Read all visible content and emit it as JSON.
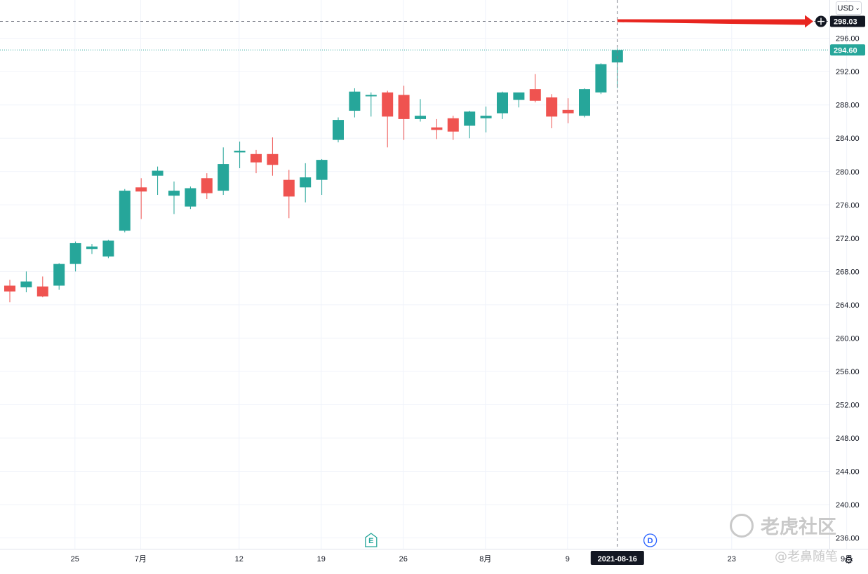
{
  "currency": "USD",
  "crosshair": {
    "price_label": "298.03",
    "date_label": "2021-08-16",
    "price": 298.03,
    "date_index": 37
  },
  "last_price": {
    "label": "294.60",
    "value": 294.6
  },
  "event_markers": [
    {
      "letter": "E",
      "date_index": 22,
      "color": "#26a69a"
    },
    {
      "letter": "D",
      "date_index": 39,
      "color": "#2962ff"
    }
  ],
  "watermark": {
    "brand": "老虎社区",
    "author": "@老鼻随笔"
  },
  "colors": {
    "up": "#26a69a",
    "down": "#ef5350",
    "annotation_arrow": "#e8251f",
    "crosshair": "#787b86"
  },
  "chart_data": {
    "type": "candlestick",
    "y_axis": {
      "ticks": [
        "236.00",
        "240.00",
        "244.00",
        "248.00",
        "252.00",
        "256.00",
        "260.00",
        "264.00",
        "268.00",
        "272.00",
        "276.00",
        "280.00",
        "284.00",
        "288.00",
        "292.00",
        "296.00"
      ],
      "range": [
        234.7,
        300.6
      ]
    },
    "x_axis": {
      "tick_labels": [
        {
          "label": "25",
          "index": 2
        },
        {
          "label": "7月",
          "index": 6
        },
        {
          "label": "12",
          "index": 12
        },
        {
          "label": "19",
          "index": 17
        },
        {
          "label": "26",
          "index": 22
        },
        {
          "label": "8月",
          "index": 27
        },
        {
          "label": "9",
          "index": 32
        },
        {
          "label": "23",
          "index": 42
        },
        {
          "label": "9月",
          "index": 49
        }
      ]
    },
    "candles": [
      {
        "o": 266.3,
        "h": 267.0,
        "l": 264.3,
        "c": 265.6
      },
      {
        "o": 266.1,
        "h": 268.0,
        "l": 265.5,
        "c": 266.8
      },
      {
        "o": 266.2,
        "h": 267.4,
        "l": 264.9,
        "c": 265.0
      },
      {
        "o": 266.3,
        "h": 269.0,
        "l": 265.8,
        "c": 268.9
      },
      {
        "o": 268.9,
        "h": 271.6,
        "l": 268.0,
        "c": 271.4
      },
      {
        "o": 270.7,
        "h": 271.3,
        "l": 270.1,
        "c": 271.0
      },
      {
        "o": 269.8,
        "h": 271.8,
        "l": 269.6,
        "c": 271.7
      },
      {
        "o": 272.9,
        "h": 277.9,
        "l": 272.7,
        "c": 277.7
      },
      {
        "o": 278.1,
        "h": 279.2,
        "l": 274.3,
        "c": 277.6
      },
      {
        "o": 279.5,
        "h": 280.6,
        "l": 277.2,
        "c": 280.1
      },
      {
        "o": 277.1,
        "h": 278.8,
        "l": 274.9,
        "c": 277.7
      },
      {
        "o": 275.8,
        "h": 278.2,
        "l": 275.5,
        "c": 278.0
      },
      {
        "o": 279.2,
        "h": 279.8,
        "l": 276.7,
        "c": 277.4
      },
      {
        "o": 277.7,
        "h": 282.9,
        "l": 277.2,
        "c": 280.9
      },
      {
        "o": 282.3,
        "h": 283.6,
        "l": 280.4,
        "c": 282.5
      },
      {
        "o": 282.1,
        "h": 282.6,
        "l": 279.8,
        "c": 281.1
      },
      {
        "o": 282.1,
        "h": 284.1,
        "l": 279.5,
        "c": 280.8
      },
      {
        "o": 279.0,
        "h": 280.2,
        "l": 274.4,
        "c": 277.0
      },
      {
        "o": 278.1,
        "h": 281.0,
        "l": 276.3,
        "c": 279.3
      },
      {
        "o": 279.0,
        "h": 281.5,
        "l": 277.2,
        "c": 281.4
      },
      {
        "o": 283.8,
        "h": 286.5,
        "l": 283.5,
        "c": 286.2
      },
      {
        "o": 287.3,
        "h": 290.0,
        "l": 286.5,
        "c": 289.6
      },
      {
        "o": 289.1,
        "h": 289.5,
        "l": 286.6,
        "c": 289.2
      },
      {
        "o": 289.5,
        "h": 289.7,
        "l": 282.9,
        "c": 286.6
      },
      {
        "o": 289.2,
        "h": 290.3,
        "l": 283.8,
        "c": 286.3
      },
      {
        "o": 286.3,
        "h": 288.7,
        "l": 286.0,
        "c": 286.7
      },
      {
        "o": 285.3,
        "h": 286.3,
        "l": 283.9,
        "c": 285.0
      },
      {
        "o": 286.4,
        "h": 286.7,
        "l": 283.8,
        "c": 284.8
      },
      {
        "o": 285.5,
        "h": 287.3,
        "l": 284.0,
        "c": 287.2
      },
      {
        "o": 286.4,
        "h": 287.8,
        "l": 284.7,
        "c": 286.7
      },
      {
        "o": 287.0,
        "h": 289.6,
        "l": 286.3,
        "c": 289.5
      },
      {
        "o": 288.6,
        "h": 289.4,
        "l": 287.7,
        "c": 289.5
      },
      {
        "o": 289.9,
        "h": 291.7,
        "l": 288.3,
        "c": 288.5
      },
      {
        "o": 288.9,
        "h": 289.3,
        "l": 285.2,
        "c": 286.6
      },
      {
        "o": 287.4,
        "h": 288.8,
        "l": 285.8,
        "c": 287.0
      },
      {
        "o": 286.7,
        "h": 290.0,
        "l": 286.5,
        "c": 289.9
      },
      {
        "o": 289.5,
        "h": 293.0,
        "l": 289.3,
        "c": 292.9
      },
      {
        "o": 293.1,
        "h": 294.8,
        "l": 290.0,
        "c": 294.6
      }
    ]
  }
}
